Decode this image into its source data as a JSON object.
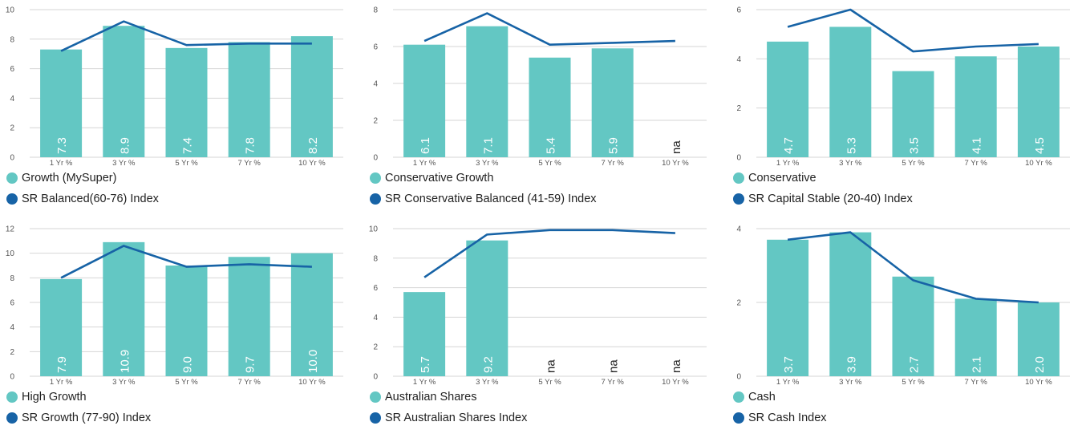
{
  "colors": {
    "bar": "#63c7c3",
    "line": "#1763a6",
    "grid": "#d6d6d6",
    "axis_text": "#555555",
    "bar_label": "#ffffff",
    "na_label": "#222222"
  },
  "chart_data": [
    {
      "type": "bar",
      "categories": [
        "1 Yr %",
        "3 Yr %",
        "5 Yr %",
        "7 Yr %",
        "10 Yr %"
      ],
      "ylim": [
        0,
        10
      ],
      "yticks": [
        0,
        2,
        4,
        6,
        8,
        10
      ],
      "grid": true,
      "legend_position": "bottom",
      "series": [
        {
          "name": "Growth (MySuper)",
          "kind": "bar",
          "values": [
            7.3,
            8.9,
            7.4,
            7.8,
            8.2
          ],
          "labels": [
            "7.3",
            "8.9",
            "7.4",
            "7.8",
            "8.2"
          ]
        },
        {
          "name": "SR Balanced(60-76) Index",
          "kind": "line",
          "values": [
            7.2,
            9.2,
            7.6,
            7.7,
            7.7
          ]
        }
      ]
    },
    {
      "type": "bar",
      "categories": [
        "1 Yr %",
        "3 Yr %",
        "5 Yr %",
        "7 Yr %",
        "10 Yr %"
      ],
      "ylim": [
        0,
        8
      ],
      "yticks": [
        0,
        2,
        4,
        6,
        8
      ],
      "grid": true,
      "legend_position": "bottom",
      "series": [
        {
          "name": "Conservative Growth",
          "kind": "bar",
          "values": [
            6.1,
            7.1,
            5.4,
            5.9,
            null
          ],
          "labels": [
            "6.1",
            "7.1",
            "5.4",
            "5.9",
            "na"
          ]
        },
        {
          "name": "SR Conservative Balanced (41-59) Index",
          "kind": "line",
          "values": [
            6.3,
            7.8,
            6.1,
            6.2,
            6.3
          ]
        }
      ]
    },
    {
      "type": "bar",
      "categories": [
        "1 Yr %",
        "3 Yr %",
        "5 Yr %",
        "7 Yr %",
        "10 Yr %"
      ],
      "ylim": [
        0,
        6
      ],
      "yticks": [
        0,
        2,
        4,
        6
      ],
      "grid": true,
      "legend_position": "bottom",
      "series": [
        {
          "name": "Conservative",
          "kind": "bar",
          "values": [
            4.7,
            5.3,
            3.5,
            4.1,
            4.5
          ],
          "labels": [
            "4.7",
            "5.3",
            "3.5",
            "4.1",
            "4.5"
          ]
        },
        {
          "name": "SR Capital Stable (20-40) Index",
          "kind": "line",
          "values": [
            5.3,
            6.0,
            4.3,
            4.5,
            4.6
          ]
        }
      ]
    },
    {
      "type": "bar",
      "categories": [
        "1 Yr %",
        "3 Yr %",
        "5 Yr %",
        "7 Yr %",
        "10 Yr %"
      ],
      "ylim": [
        0,
        12
      ],
      "yticks": [
        0,
        2,
        4,
        6,
        8,
        10,
        12
      ],
      "grid": true,
      "legend_position": "bottom",
      "series": [
        {
          "name": "High Growth",
          "kind": "bar",
          "values": [
            7.9,
            10.9,
            9.0,
            9.7,
            10.0
          ],
          "labels": [
            "7.9",
            "10.9",
            "9.0",
            "9.7",
            "10.0"
          ]
        },
        {
          "name": "SR Growth (77-90) Index",
          "kind": "line",
          "values": [
            8.0,
            10.6,
            8.9,
            9.1,
            8.9
          ]
        }
      ]
    },
    {
      "type": "bar",
      "categories": [
        "1 Yr %",
        "3 Yr %",
        "5 Yr %",
        "7 Yr %",
        "10 Yr %"
      ],
      "ylim": [
        0,
        10
      ],
      "yticks": [
        0,
        2,
        4,
        6,
        8,
        10
      ],
      "grid": true,
      "legend_position": "bottom",
      "series": [
        {
          "name": "Australian Shares",
          "kind": "bar",
          "values": [
            5.7,
            9.2,
            null,
            null,
            null
          ],
          "labels": [
            "5.7",
            "9.2",
            "na",
            "na",
            "na"
          ]
        },
        {
          "name": "SR Australian Shares Index",
          "kind": "line",
          "values": [
            6.7,
            9.6,
            9.9,
            9.9,
            9.7
          ]
        }
      ]
    },
    {
      "type": "bar",
      "categories": [
        "1 Yr %",
        "3 Yr %",
        "5 Yr %",
        "7 Yr %",
        "10 Yr %"
      ],
      "ylim": [
        0,
        4
      ],
      "yticks": [
        0,
        2,
        4
      ],
      "grid": true,
      "legend_position": "bottom",
      "series": [
        {
          "name": "Cash",
          "kind": "bar",
          "values": [
            3.7,
            3.9,
            2.7,
            2.1,
            2.0
          ],
          "labels": [
            "3.7",
            "3.9",
            "2.7",
            "2.1",
            "2.0"
          ]
        },
        {
          "name": "SR Cash Index",
          "kind": "line",
          "values": [
            3.7,
            3.9,
            2.6,
            2.1,
            2.0
          ]
        }
      ]
    }
  ]
}
